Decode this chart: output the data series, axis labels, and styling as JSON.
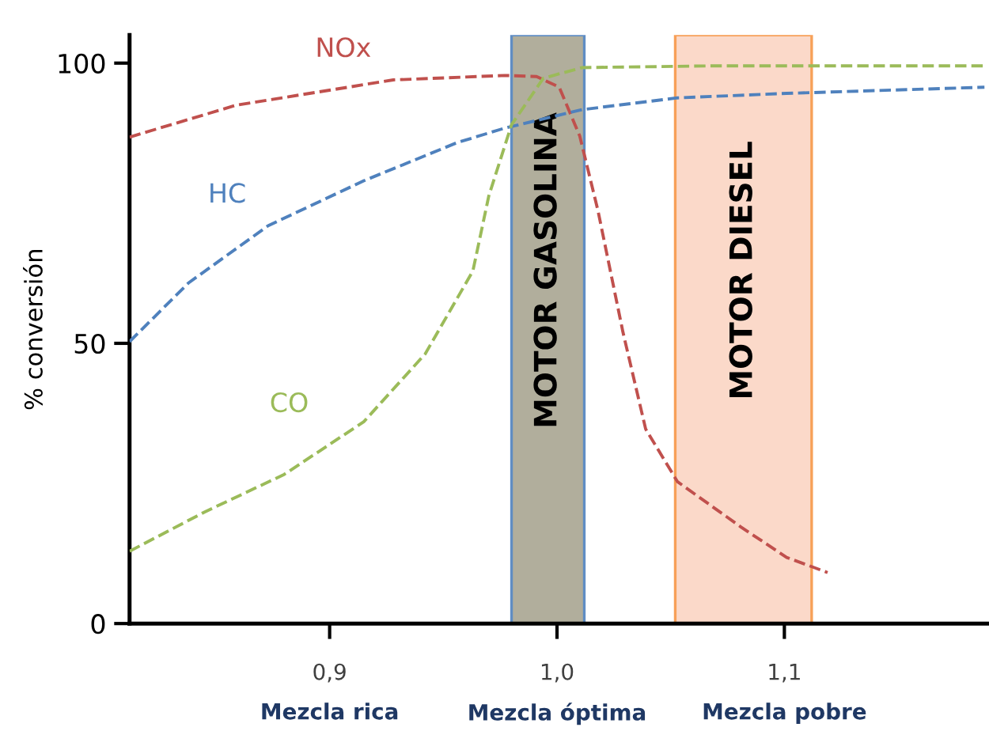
{
  "chart_data": {
    "type": "line",
    "ylabel": "% conversión",
    "xlim": [
      0.812,
      1.19
    ],
    "ylim": [
      0,
      105
    ],
    "xticks": [
      {
        "value": 0.9,
        "label": "0,9\nMezcla rica"
      },
      {
        "value": 1.0,
        "label": "1,0\nMezcla óptima"
      },
      {
        "value": 1.1,
        "label": "1,1\nMezcla pobre"
      }
    ],
    "yticks": [
      0,
      50,
      100
    ],
    "grid": false,
    "line_style": "dashed",
    "marker": "none",
    "series": [
      {
        "name": "NOx",
        "color": "#c0504d",
        "x": [
          0.812,
          0.859,
          0.928,
          0.977,
          0.991,
          1.001,
          1.01,
          1.018,
          1.029,
          1.039,
          1.053,
          1.081,
          1.101,
          1.119
        ],
        "values": [
          86.8,
          92.5,
          97,
          97.8,
          97.6,
          95.7,
          87,
          73.7,
          52,
          34.7,
          25.3,
          17.2,
          11.8,
          9.1
        ]
      },
      {
        "name": "HC",
        "color": "#4f81bd",
        "x": [
          0.812,
          0.838,
          0.873,
          0.915,
          0.956,
          0.977,
          1.011,
          1.053,
          1.101,
          1.188
        ],
        "values": [
          50.3,
          60.8,
          71,
          79,
          85.8,
          88.4,
          91.7,
          93.8,
          94.6,
          95.7
        ]
      },
      {
        "name": "CO",
        "color": "#9bbb59",
        "x": [
          0.812,
          0.845,
          0.88,
          0.915,
          0.942,
          0.963,
          0.97,
          0.98,
          0.994,
          1.011,
          1.067,
          1.188
        ],
        "values": [
          12.9,
          19.9,
          26.6,
          36,
          48.1,
          62.9,
          76.3,
          89,
          97.3,
          99.2,
          99.5,
          99.5
        ]
      }
    ],
    "bands": [
      {
        "axis": "x",
        "from": 0.98,
        "to": 1.012,
        "label": "MOTOR GASOLINA",
        "color": "#a9a692"
      },
      {
        "axis": "x",
        "from": 1.052,
        "to": 1.112,
        "label": "MOTOR DIESEL",
        "color": "#fbd5c4"
      }
    ]
  }
}
